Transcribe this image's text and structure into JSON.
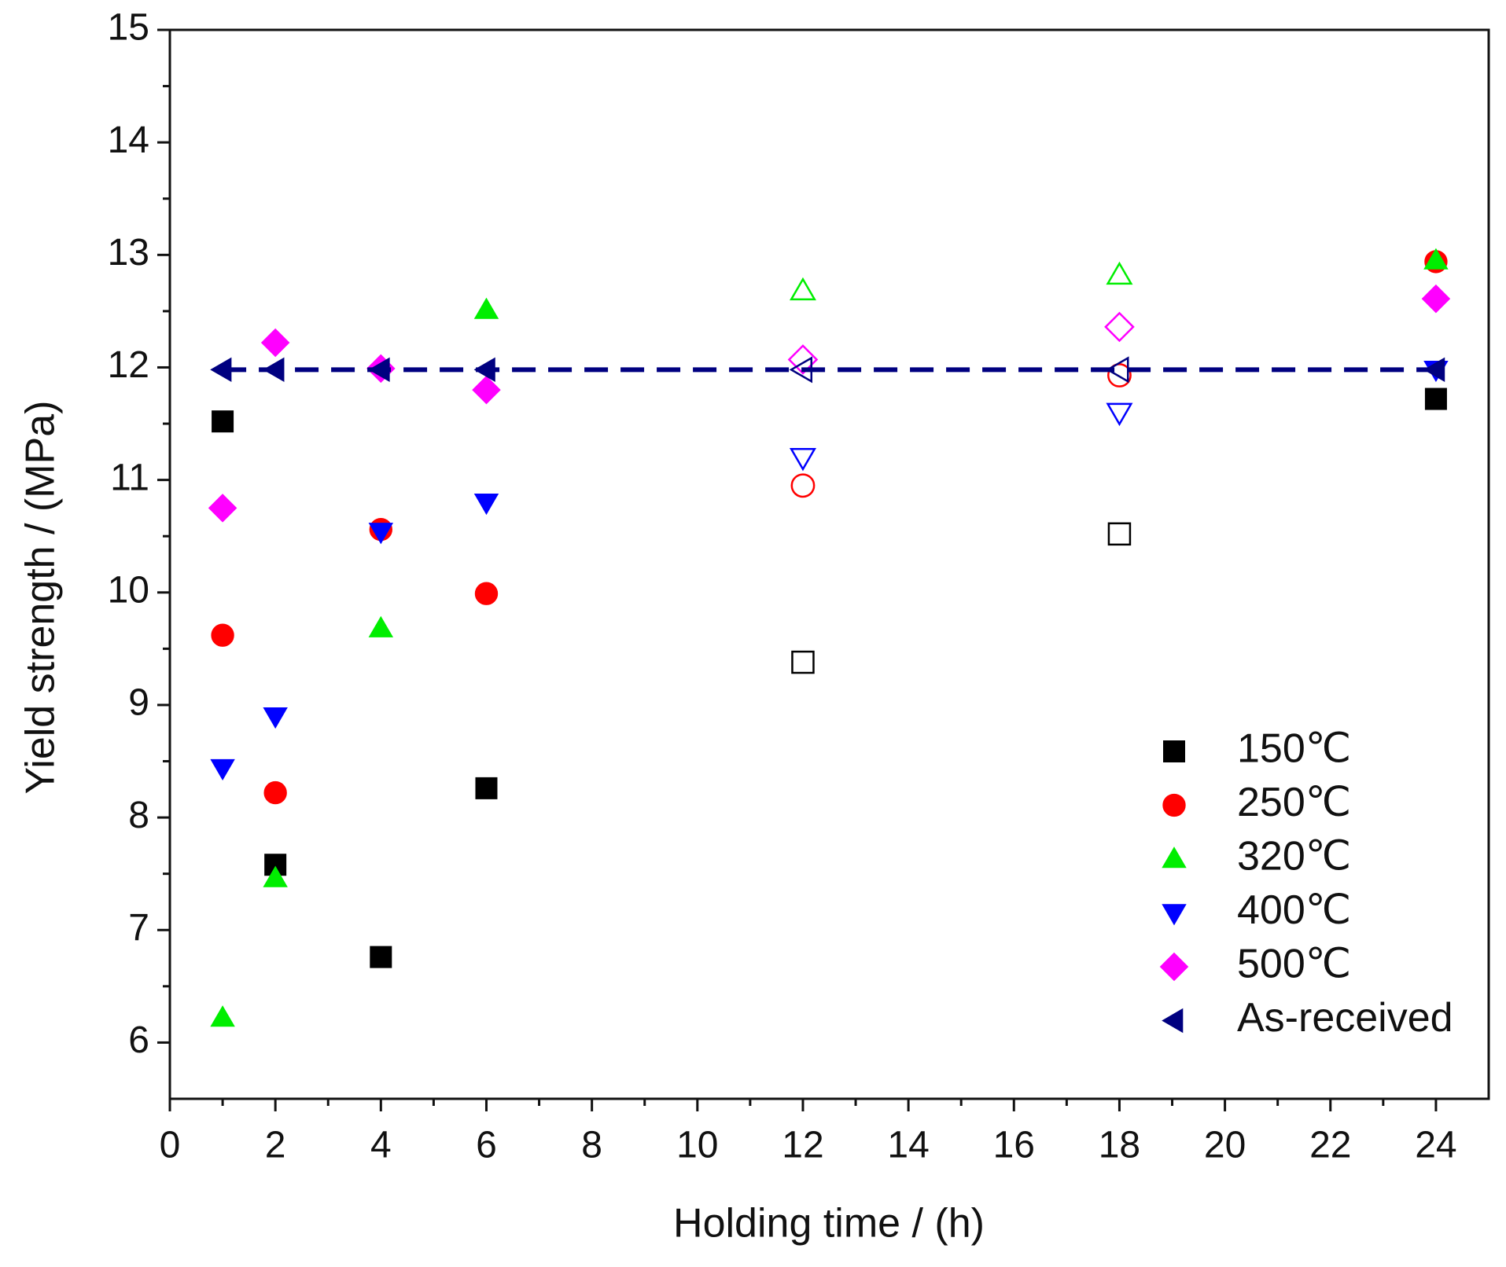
{
  "chart_data": {
    "type": "scatter",
    "x_label": "Holding time / (h)",
    "y_label": "Yield strength / (MPa)",
    "x": [
      1,
      2,
      4,
      6,
      12,
      18,
      24
    ],
    "filled": [
      true,
      true,
      true,
      true,
      false,
      false,
      true
    ],
    "series": [
      {
        "name": "150℃",
        "color": "#000000",
        "marker": "square",
        "values": [
          11.52,
          7.58,
          6.76,
          8.26,
          9.38,
          10.52,
          11.72
        ]
      },
      {
        "name": "250℃",
        "color": "#ff0000",
        "marker": "circle",
        "values": [
          9.62,
          8.22,
          10.56,
          9.99,
          10.95,
          11.93,
          12.94
        ]
      },
      {
        "name": "320℃",
        "color": "#00ee00",
        "marker": "triangle-up",
        "values": [
          6.22,
          7.46,
          9.68,
          12.51,
          12.68,
          12.82,
          12.95
        ]
      },
      {
        "name": "400℃",
        "color": "#0000ff",
        "marker": "triangle-down",
        "values": [
          8.44,
          8.9,
          10.54,
          10.8,
          11.2,
          11.6,
          11.98
        ]
      },
      {
        "name": "500℃",
        "color": "#ff00ff",
        "marker": "diamond",
        "values": [
          10.75,
          12.22,
          11.99,
          11.8,
          12.07,
          12.36,
          12.61
        ]
      },
      {
        "name": "As-received",
        "color": "#000080",
        "marker": "triangle-left",
        "line_style": "dashed",
        "values": [
          11.98,
          11.98,
          11.98,
          11.98,
          11.98,
          11.98,
          11.98
        ]
      }
    ],
    "xlim": [
      0,
      25
    ],
    "xticks": [
      0,
      2,
      4,
      6,
      8,
      10,
      12,
      14,
      16,
      18,
      20,
      22,
      24
    ],
    "ylim": [
      5.5,
      15
    ],
    "yticks": [
      6,
      7,
      8,
      9,
      10,
      11,
      12,
      13,
      14,
      15
    ],
    "minor_ticks": true,
    "legend": "lower right"
  }
}
